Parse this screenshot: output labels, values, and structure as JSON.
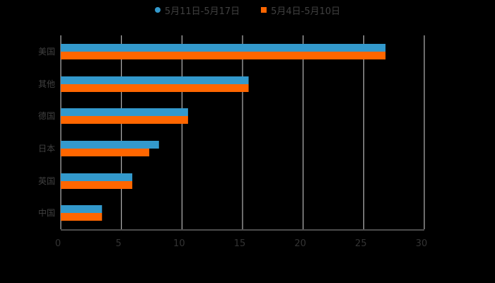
{
  "chart_data": {
    "type": "bar",
    "orientation": "horizontal",
    "title": "",
    "categories": [
      "美国",
      "其他",
      "德国",
      "日本",
      "英国",
      "中国"
    ],
    "series": [
      {
        "name": "5月11日-5月17日",
        "color": "#3399cc",
        "values": [
          26.8,
          15.5,
          10.5,
          8.1,
          5.9,
          3.4
        ]
      },
      {
        "name": "5月4日-5月10日",
        "color": "#ff6600",
        "values": [
          26.8,
          15.5,
          10.5,
          7.3,
          5.9,
          3.4
        ]
      }
    ],
    "xlabel": "",
    "ylabel": "",
    "xlim": [
      0,
      30
    ],
    "xticks": [
      0,
      5,
      10,
      15,
      20,
      25,
      30
    ],
    "grid": true,
    "legend_position": "top"
  },
  "legend": {
    "series1": "5月11日-5月17日",
    "series2": "5月4日-5月10日"
  }
}
